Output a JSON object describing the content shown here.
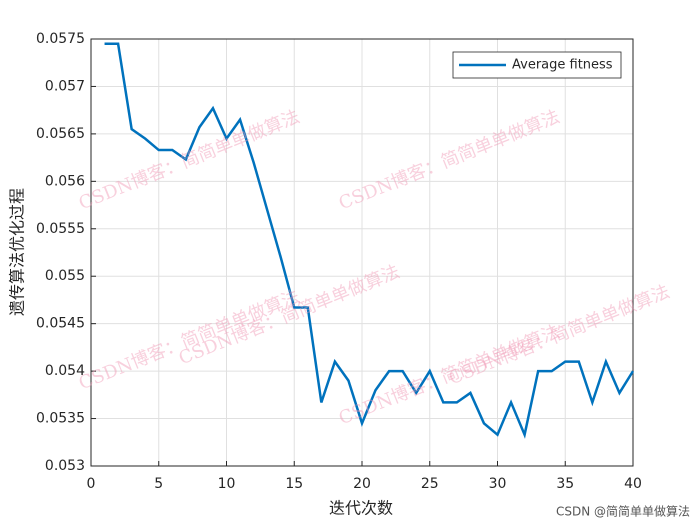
{
  "chart_data": {
    "type": "line",
    "title_y": "遗传算法优化过程",
    "xlabel": "迭代次数",
    "ylabel": "遗传算法优化过程",
    "x": [
      1,
      2,
      3,
      4,
      5,
      6,
      7,
      8,
      9,
      10,
      11,
      12,
      13,
      14,
      15,
      16,
      17,
      18,
      19,
      20,
      21,
      22,
      23,
      24,
      25,
      26,
      27,
      28,
      29,
      30,
      31,
      32,
      33,
      34,
      35,
      36,
      37,
      38,
      39,
      40
    ],
    "series": [
      {
        "name": "Average fitness",
        "color": "#0072BD",
        "values": [
          0.05745,
          0.05745,
          0.05655,
          0.05645,
          0.05633,
          0.05633,
          0.05623,
          0.05657,
          0.05677,
          0.05645,
          0.05665,
          0.0562,
          0.0557,
          0.0552,
          0.05467,
          0.05467,
          0.05367,
          0.0541,
          0.0539,
          0.05345,
          0.0538,
          0.054,
          0.054,
          0.05377,
          0.054,
          0.05367,
          0.05367,
          0.05377,
          0.05345,
          0.05333,
          0.05367,
          0.05333,
          0.054,
          0.054,
          0.0541,
          0.0541,
          0.05367,
          0.0541,
          0.05377,
          0.054
        ]
      }
    ],
    "xlim": [
      0,
      40
    ],
    "xticks": [
      0,
      5,
      10,
      15,
      20,
      25,
      30,
      35,
      40
    ],
    "ylim": [
      0.053,
      0.0575
    ],
    "yticks": [
      0.053,
      0.0535,
      0.054,
      0.0545,
      0.055,
      0.0555,
      0.056,
      0.0565,
      0.057,
      0.0575
    ],
    "grid": true,
    "legend": "top-right",
    "watermark": "CSDN博客：简简单单做算法",
    "credit": "CSDN @简简单单做算法"
  }
}
